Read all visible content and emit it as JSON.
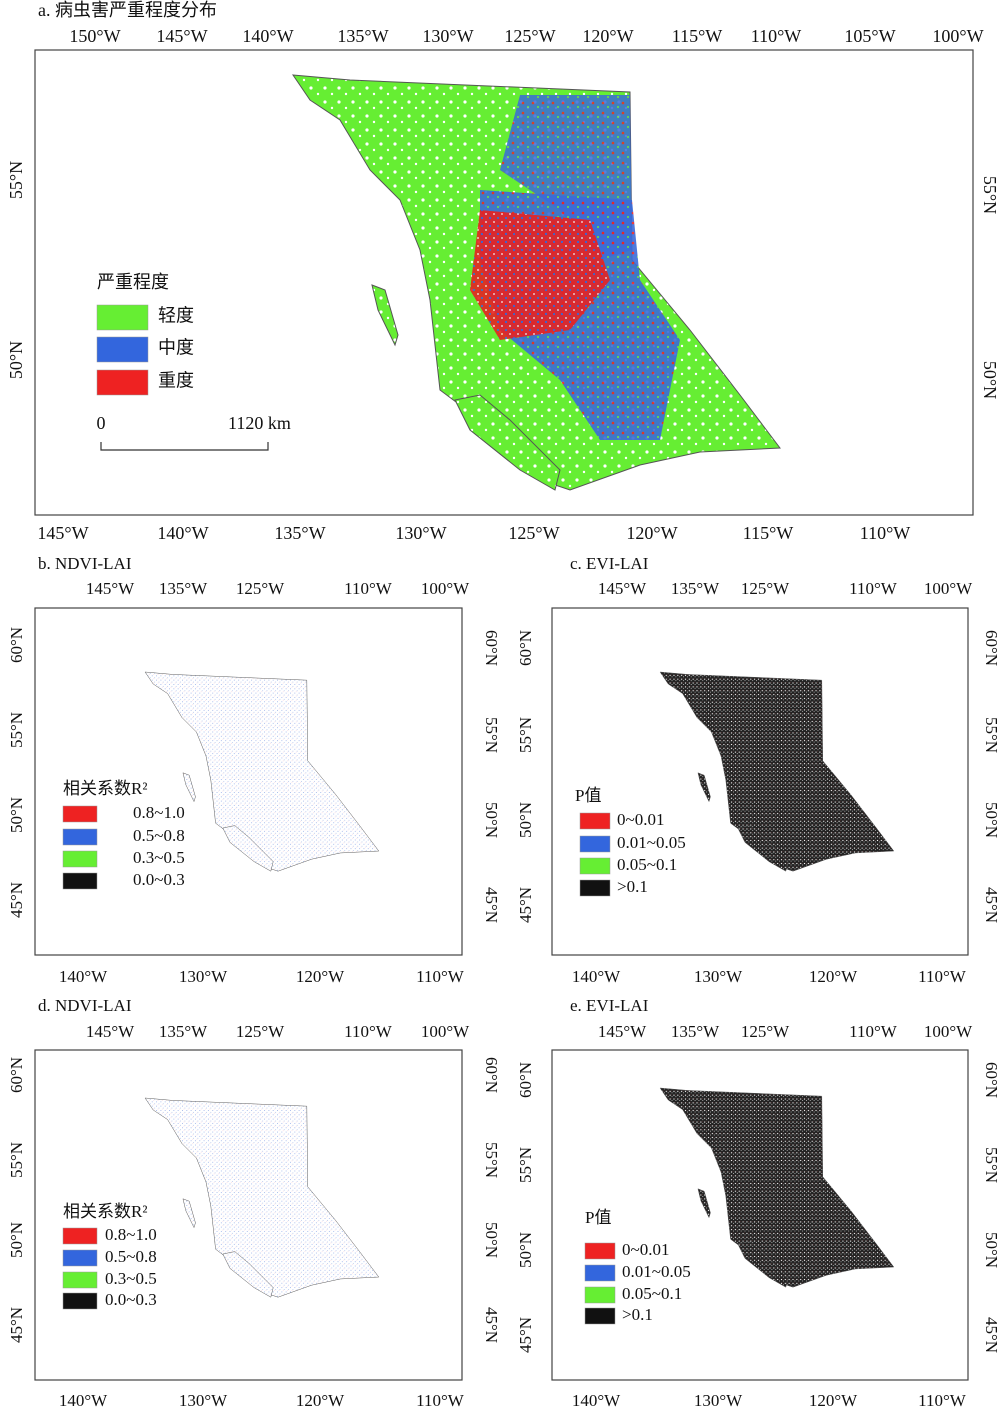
{
  "panels": [
    {
      "title": "a. 病虫害严重程度分布",
      "top_ticks": [
        "150°W",
        "145°W",
        "140°W",
        "135°W",
        "130°W",
        "125°W",
        "120°W",
        "115°W",
        "110°W",
        "105°W",
        "100°W"
      ],
      "bottom_ticks": [
        "145°W",
        "140°W",
        "135°W",
        "130°W",
        "125°W",
        "120°W",
        "115°W",
        "110°W"
      ],
      "left_ticks": [
        "55°N",
        "50°N"
      ],
      "right_ticks": [
        "55°N",
        "50°N"
      ],
      "legend": {
        "title": "严重程度",
        "items": [
          {
            "label": "轻度",
            "color": "#66ee33"
          },
          {
            "label": "中度",
            "color": "#3366dd"
          },
          {
            "label": "重度",
            "color": "#ee2222"
          }
        ]
      },
      "scale": {
        "start": "0",
        "end": "1120 km"
      }
    },
    {
      "title": "b. NDVI-LAI",
      "top_ticks": [
        "145°W",
        "135°W",
        "125°W",
        "110°W",
        "100°W"
      ],
      "bottom_ticks": [
        "140°W",
        "130°W",
        "120°W",
        "110°W"
      ],
      "left_ticks": [
        "60°N",
        "55°N",
        "50°N",
        "45°N"
      ],
      "right_ticks": [
        "60°N",
        "55°N",
        "50°N",
        "45°N"
      ],
      "legend": {
        "title": "相关系数R²",
        "items": [
          {
            "label": "0.8~1.0",
            "color": "#ee2222"
          },
          {
            "label": "0.5~0.8",
            "color": "#3366dd"
          },
          {
            "label": "0.3~0.5",
            "color": "#66ee33"
          },
          {
            "label": "0.0~0.3",
            "color": "#111111"
          }
        ]
      }
    },
    {
      "title": "c. EVI-LAI",
      "top_ticks": [
        "145°W",
        "135°W",
        "125°W",
        "110°W",
        "100°W"
      ],
      "bottom_ticks": [
        "140°W",
        "130°W",
        "120°W",
        "110°W"
      ],
      "left_ticks": [
        "60°N",
        "55°N",
        "50°N",
        "45°N"
      ],
      "right_ticks": [
        "60°N",
        "55°N",
        "50°N",
        "45°N"
      ],
      "legend": {
        "title": "P值",
        "items": [
          {
            "label": "0~0.01",
            "color": "#ee2222"
          },
          {
            "label": "0.01~0.05",
            "color": "#3366dd"
          },
          {
            "label": "0.05~0.1",
            "color": "#66ee33"
          },
          {
            "label": ">0.1",
            "color": "#111111"
          }
        ]
      }
    },
    {
      "title": "d. NDVI-LAI",
      "top_ticks": [
        "145°W",
        "135°W",
        "125°W",
        "110°W",
        "100°W"
      ],
      "bottom_ticks": [
        "140°W",
        "130°W",
        "120°W",
        "110°W"
      ],
      "left_ticks": [
        "60°N",
        "55°N",
        "50°N",
        "45°N"
      ],
      "right_ticks": [
        "60°N",
        "55°N",
        "50°N",
        "45°N"
      ],
      "legend": {
        "title": "相关系数R²",
        "items": [
          {
            "label": "0.8~1.0",
            "color": "#ee2222"
          },
          {
            "label": "0.5~0.8",
            "color": "#3366dd"
          },
          {
            "label": "0.3~0.5",
            "color": "#66ee33"
          },
          {
            "label": "0.0~0.3",
            "color": "#111111"
          }
        ]
      }
    },
    {
      "title": "e. EVI-LAI",
      "top_ticks": [
        "145°W",
        "135°W",
        "125°W",
        "110°W",
        "100°W"
      ],
      "bottom_ticks": [
        "140°W",
        "130°W",
        "120°W",
        "110°W"
      ],
      "left_ticks": [
        "60°N",
        "55°N",
        "50°N",
        "45°N"
      ],
      "right_ticks": [
        "60°N",
        "55°N",
        "50°N",
        "45°N"
      ],
      "legend": {
        "title": "P值",
        "items": [
          {
            "label": "0~0.01",
            "color": "#ee2222"
          },
          {
            "label": "0.01~0.05",
            "color": "#3366dd"
          },
          {
            "label": "0.05~0.1",
            "color": "#66ee33"
          },
          {
            "label": ">0.1",
            "color": "#111111"
          }
        ]
      }
    }
  ]
}
